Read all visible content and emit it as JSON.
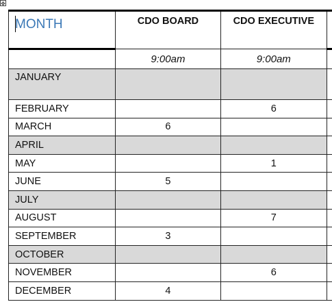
{
  "table": {
    "month_header": "MONTH",
    "columns": [
      "CDO BOARD",
      "CDO EXECUTIVE"
    ],
    "times": [
      "9:00am",
      "9:00am"
    ],
    "rows": [
      {
        "month": "JANUARY",
        "board": "",
        "executive": "",
        "shaded": true
      },
      {
        "month": "FEBRUARY",
        "board": "",
        "executive": "6",
        "shaded": false
      },
      {
        "month": "MARCH",
        "board": "6",
        "executive": "",
        "shaded": false
      },
      {
        "month": "APRIL",
        "board": "",
        "executive": "",
        "shaded": true
      },
      {
        "month": "MAY",
        "board": "",
        "executive": "1",
        "shaded": false
      },
      {
        "month": "JUNE",
        "board": "5",
        "executive": "",
        "shaded": false
      },
      {
        "month": "JULY",
        "board": "",
        "executive": "",
        "shaded": true
      },
      {
        "month": "AUGUST",
        "board": "",
        "executive": "7",
        "shaded": false
      },
      {
        "month": "SEPTEMBER",
        "board": "3",
        "executive": "",
        "shaded": false
      },
      {
        "month": "OCTOBER",
        "board": "",
        "executive": "",
        "shaded": true
      },
      {
        "month": "NOVEMBER",
        "board": "",
        "executive": "6",
        "shaded": false
      },
      {
        "month": "DECEMBER",
        "board": "4",
        "executive": "",
        "shaded": false
      }
    ]
  }
}
